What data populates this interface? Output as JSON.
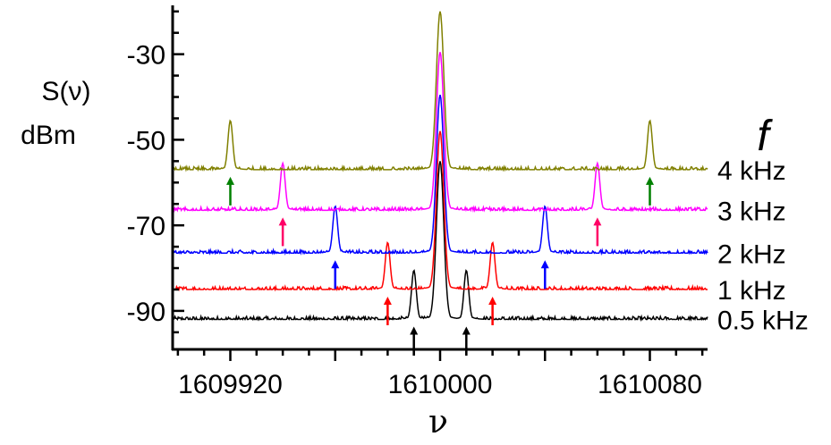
{
  "chart_data": {
    "type": "line",
    "ylabel": [
      "S(ν)",
      "dBm"
    ],
    "xlabel": "ν",
    "legend_title": "f",
    "x_ticks": [
      1609920,
      1610000,
      1610080
    ],
    "x_tick_labels": [
      "1609920",
      "1610000",
      "1610080"
    ],
    "y_ticks": [
      -30,
      -50,
      -70,
      -90
    ],
    "y_tick_labels": [
      "-30",
      "-50",
      "-70",
      "-90"
    ],
    "xlim": [
      1609898,
      1610102
    ],
    "ylim": [
      -99,
      -19
    ],
    "series": [
      {
        "name": "0.5 kHz",
        "color": "#000000",
        "baseline": -92,
        "center_peak": -55,
        "sidebands": [
          [
            1609990,
            -80.5
          ],
          [
            1610010,
            -80.5
          ]
        ],
        "arrow_x": [
          1609990,
          1610010
        ]
      },
      {
        "name": "1 kHz",
        "color": "#ff0000",
        "baseline": -85,
        "center_peak": -48,
        "sidebands": [
          [
            1609980,
            -74
          ],
          [
            1610020,
            -74
          ]
        ],
        "arrow_x": [
          1609980,
          1610020
        ]
      },
      {
        "name": "2 kHz",
        "color": "#0000ff",
        "baseline": -76.5,
        "center_peak": -39.5,
        "sidebands": [
          [
            1609960,
            -65.5
          ],
          [
            1610040,
            -65.5
          ]
        ],
        "arrow_x": [
          1609960,
          1610040
        ]
      },
      {
        "name": "3 kHz",
        "color": "#ff00ff",
        "baseline": -66.5,
        "center_peak": -29.5,
        "sidebands": [
          [
            1609940,
            -55.5
          ],
          [
            1610060,
            -55.5
          ]
        ],
        "arrow_x": [
          1609940,
          1610060
        ]
      },
      {
        "name": "4 kHz",
        "color": "#808000",
        "baseline": -57,
        "center_peak": -20,
        "sidebands": [
          [
            1609920,
            -45.5
          ],
          [
            1610080,
            -45.5
          ]
        ],
        "arrow_x": [
          1609920,
          1610080
        ]
      }
    ],
    "arrow_colors": [
      "#000000",
      "#ff0000",
      "#0000ff",
      "#ff0066",
      "#008000"
    ],
    "grid": false
  }
}
